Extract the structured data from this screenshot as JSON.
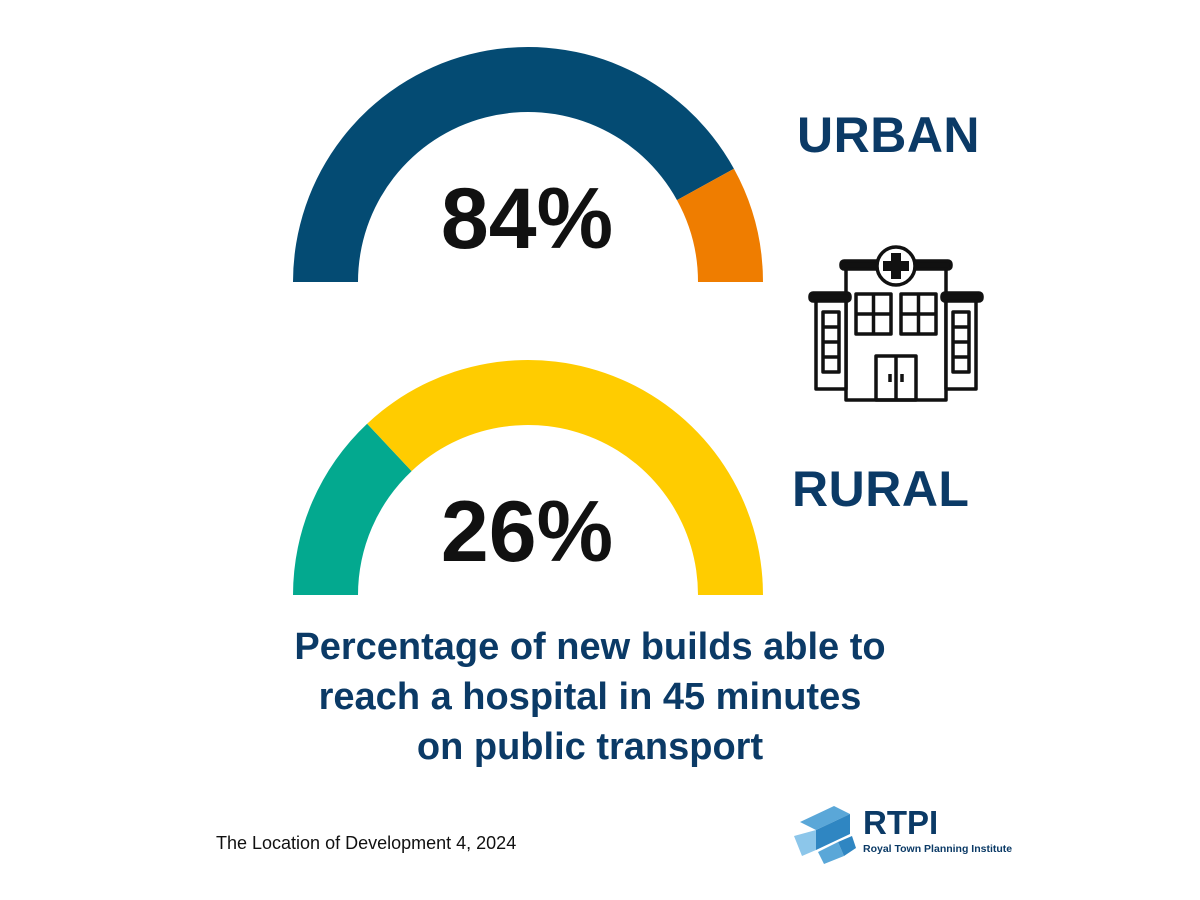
{
  "chart_data": [
    {
      "type": "gauge",
      "label": "URBAN",
      "value": 84,
      "value_text": "84%",
      "max": 100,
      "colors": {
        "filled": "#044b73",
        "remainder": "#ef7d00"
      }
    },
    {
      "type": "gauge",
      "label": "RURAL",
      "value": 26,
      "value_text": "26%",
      "max": 100,
      "colors": {
        "filled": "#03a98f",
        "remainder": "#ffcc00"
      }
    }
  ],
  "caption": {
    "line1": "Percentage of new builds able to",
    "line2": "reach a hospital in 45 minutes",
    "line3": "on public transport"
  },
  "source": "The Location of Development 4, 2024",
  "logo": {
    "name": "RTPI",
    "subtitle": "Royal Town Planning Institute",
    "icon": "rtpi-logo-mark"
  },
  "icons": {
    "hospital": "hospital-icon"
  }
}
